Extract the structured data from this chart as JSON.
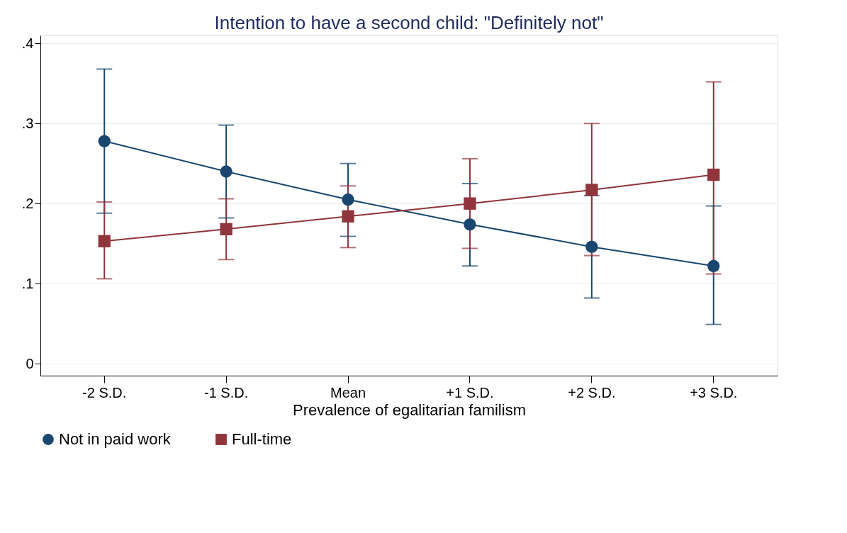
{
  "chart_data": {
    "type": "line",
    "title": "Intention to have a second child: \"Definitely not\"",
    "xlabel": "Prevalence of egalitarian familism",
    "categories": [
      "-2 S.D.",
      "-1 S.D.",
      "Mean",
      "+1 S.D.",
      "+2 S.D.",
      "+3 S.D."
    ],
    "series": [
      {
        "name": "Not in paid work",
        "color": "#1a476f",
        "marker": "circle",
        "values": [
          0.278,
          0.24,
          0.205,
          0.174,
          0.146,
          0.122
        ],
        "errors": [
          [
            0.188,
            0.368
          ],
          [
            0.182,
            0.298
          ],
          [
            0.159,
            0.25
          ],
          [
            0.122,
            0.225
          ],
          [
            0.082,
            0.21
          ],
          [
            0.049,
            0.197
          ]
        ]
      },
      {
        "name": "Full-time",
        "color": "#90353b",
        "marker": "square",
        "values": [
          0.153,
          0.168,
          0.184,
          0.2,
          0.217,
          0.236
        ],
        "errors": [
          [
            0.106,
            0.202
          ],
          [
            0.13,
            0.206
          ],
          [
            0.145,
            0.222
          ],
          [
            0.144,
            0.256
          ],
          [
            0.135,
            0.3
          ],
          [
            0.112,
            0.352
          ]
        ]
      }
    ],
    "ylim": [
      -0.015,
      0.41
    ],
    "yticks": [
      {
        "value": 0,
        "label": "0"
      },
      {
        "value": 0.1,
        "label": ".1"
      },
      {
        "value": 0.2,
        "label": ".2"
      },
      {
        "value": 0.3,
        "label": ".3"
      },
      {
        "value": 0.4,
        "label": ".4"
      }
    ],
    "grid": "y",
    "legend": "bottom"
  }
}
